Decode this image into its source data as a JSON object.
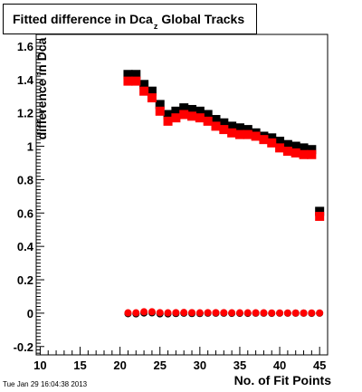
{
  "chart_data": {
    "type": "scatter",
    "title": "Fitted difference in Dca",
    "title_subscript": "z",
    "title_suffix": "Global Tracks",
    "xlabel": "No. of Fit Points",
    "ylabel": "difference in Dca",
    "xlim": [
      9.5,
      46.0
    ],
    "ylim": [
      -0.25,
      1.67
    ],
    "xticks": [
      10,
      15,
      20,
      25,
      30,
      35,
      40,
      45
    ],
    "yticks": [
      -0.2,
      0,
      0.2,
      0.4,
      0.6,
      0.8,
      1,
      1.2,
      1.4,
      1.6
    ],
    "ytick_labels": [
      "-0.2",
      "0",
      "0.2",
      "0.4",
      "0.6",
      "0.8",
      "1",
      "1.2",
      "1.4",
      "1.6"
    ],
    "grid": false,
    "x": [
      21,
      22,
      23,
      24,
      25,
      26,
      27,
      28,
      29,
      30,
      31,
      32,
      33,
      34,
      35,
      36,
      37,
      38,
      39,
      40,
      41,
      42,
      43,
      44,
      45
    ],
    "series": [
      {
        "marker": "square",
        "color": "#000000",
        "values": [
          1.43,
          1.43,
          1.37,
          1.33,
          1.25,
          1.19,
          1.21,
          1.23,
          1.22,
          1.21,
          1.19,
          1.16,
          1.14,
          1.12,
          1.11,
          1.1,
          1.08,
          1.06,
          1.05,
          1.03,
          1.01,
          1.0,
          0.99,
          0.98,
          0.61
        ]
      },
      {
        "marker": "square",
        "color": "#ff0000",
        "values": [
          1.39,
          1.39,
          1.33,
          1.29,
          1.21,
          1.15,
          1.17,
          1.19,
          1.18,
          1.17,
          1.15,
          1.12,
          1.1,
          1.08,
          1.07,
          1.07,
          1.06,
          1.04,
          1.02,
          0.99,
          0.97,
          0.96,
          0.95,
          0.95,
          0.58
        ]
      },
      {
        "marker": "circle",
        "color": "#000000",
        "values": [
          -0.003,
          -0.004,
          0.001,
          0.002,
          -0.004,
          -0.004,
          -0.002,
          0.0,
          -0.002,
          -0.002,
          0.0,
          0.0,
          0.0,
          -0.001,
          -0.001,
          -0.001,
          0.0,
          0.0,
          -0.001,
          0.0,
          0.0,
          0.0,
          0.0,
          -0.001,
          0.0
        ]
      },
      {
        "marker": "circle",
        "color": "#ff0000",
        "values": [
          0.002,
          0.002,
          0.008,
          0.008,
          0.003,
          0.002,
          0.003,
          0.004,
          0.003,
          0.002,
          0.003,
          0.003,
          0.003,
          0.002,
          0.002,
          0.002,
          0.002,
          0.002,
          0.001,
          0.001,
          0.001,
          0.001,
          0.001,
          0.001,
          0.001
        ]
      }
    ]
  },
  "timestamp": "Tue Jan 29 16:04:38 2013"
}
